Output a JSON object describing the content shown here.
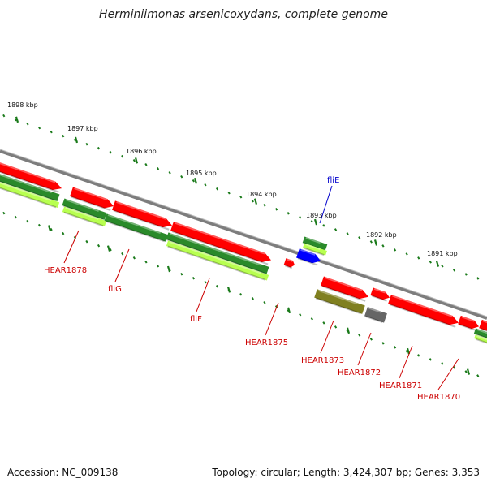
{
  "title": "Herminiimonas arsenicoxydans, complete genome",
  "footer": {
    "accession": "Accession: NC_009138",
    "topology": "Topology: circular; Length: 3,424,307 bp; Genes: 3,353"
  },
  "colors": {
    "backbone": "#888888",
    "red_gene": "#ff0000",
    "blue_gene": "#0000ff",
    "green_gene": "#2e8b2e",
    "lime_gene": "#aaff44",
    "olive_gene": "#808020",
    "gray_gene": "#666666",
    "tick": "#1a7a1a",
    "label_red": "#cc0000",
    "label_blue": "#0000cc"
  },
  "kbp_labels": [
    {
      "text": "1898 kbp"
    },
    {
      "text": "1897 kbp"
    },
    {
      "text": "1896 kbp"
    },
    {
      "text": "1895 kbp"
    },
    {
      "text": "1894 kbp"
    },
    {
      "text": "1893 kbp"
    },
    {
      "text": "1892 kbp"
    },
    {
      "text": "1891 kbp"
    }
  ],
  "gene_labels": [
    {
      "text": "HEAR1878",
      "color": "red"
    },
    {
      "text": "fliG",
      "color": "red"
    },
    {
      "text": "fliF",
      "color": "red"
    },
    {
      "text": "HEAR1875",
      "color": "red"
    },
    {
      "text": "HEAR1873",
      "color": "red"
    },
    {
      "text": "HEAR1872",
      "color": "red"
    },
    {
      "text": "HEAR1871",
      "color": "red"
    },
    {
      "text": "HEAR1870",
      "color": "red"
    },
    {
      "text": "fliE",
      "color": "blue"
    }
  ]
}
